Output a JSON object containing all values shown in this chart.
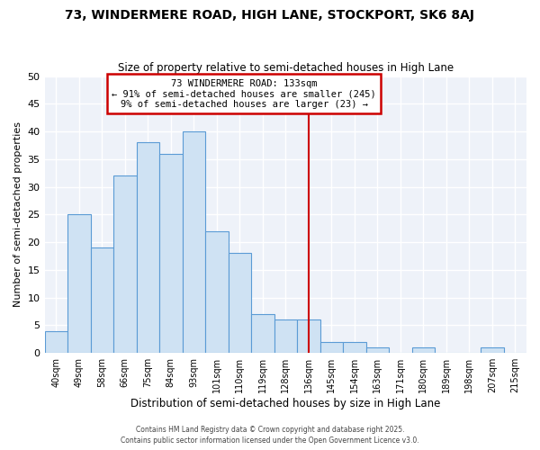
{
  "title": "73, WINDERMERE ROAD, HIGH LANE, STOCKPORT, SK6 8AJ",
  "subtitle": "Size of property relative to semi-detached houses in High Lane",
  "xlabel": "Distribution of semi-detached houses by size in High Lane",
  "ylabel": "Number of semi-detached properties",
  "categories": [
    "40sqm",
    "49sqm",
    "58sqm",
    "66sqm",
    "75sqm",
    "84sqm",
    "93sqm",
    "101sqm",
    "110sqm",
    "119sqm",
    "128sqm",
    "136sqm",
    "145sqm",
    "154sqm",
    "163sqm",
    "171sqm",
    "180sqm",
    "189sqm",
    "198sqm",
    "207sqm",
    "215sqm"
  ],
  "values": [
    4,
    25,
    19,
    32,
    38,
    36,
    40,
    22,
    18,
    7,
    6,
    6,
    2,
    2,
    1,
    0,
    1,
    0,
    0,
    1,
    0
  ],
  "bar_color": "#cfe2f3",
  "bar_edgecolor": "#5b9bd5",
  "red_line_index": 11,
  "annotation_title": "73 WINDERMERE ROAD: 133sqm",
  "annotation_line1": "← 91% of semi-detached houses are smaller (245)",
  "annotation_line2": "9% of semi-detached houses are larger (23) →",
  "annotation_box_edgecolor": "#cc0000",
  "vline_color": "#cc0000",
  "background_color": "#eef2f9",
  "grid_color": "#ffffff",
  "footer1": "Contains HM Land Registry data © Crown copyright and database right 2025.",
  "footer2": "Contains public sector information licensed under the Open Government Licence v3.0.",
  "ylim": [
    0,
    50
  ],
  "yticks": [
    0,
    5,
    10,
    15,
    20,
    25,
    30,
    35,
    40,
    45,
    50
  ]
}
